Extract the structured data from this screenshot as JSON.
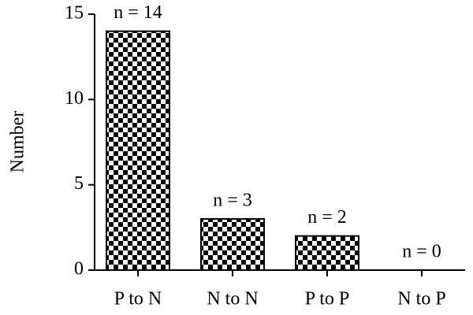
{
  "chart_data": {
    "type": "bar",
    "y_label": "Number",
    "categories": [
      "P to N",
      "N to N",
      "P to P",
      "N to P"
    ],
    "values": [
      14,
      3,
      2,
      0
    ],
    "value_labels": [
      "n = 14",
      "n = 3",
      "n = 2",
      "n = 0"
    ],
    "color": "#000000",
    "ylim": [
      0,
      15
    ],
    "yticks": [
      0,
      5,
      10,
      15
    ],
    "grid": false
  }
}
